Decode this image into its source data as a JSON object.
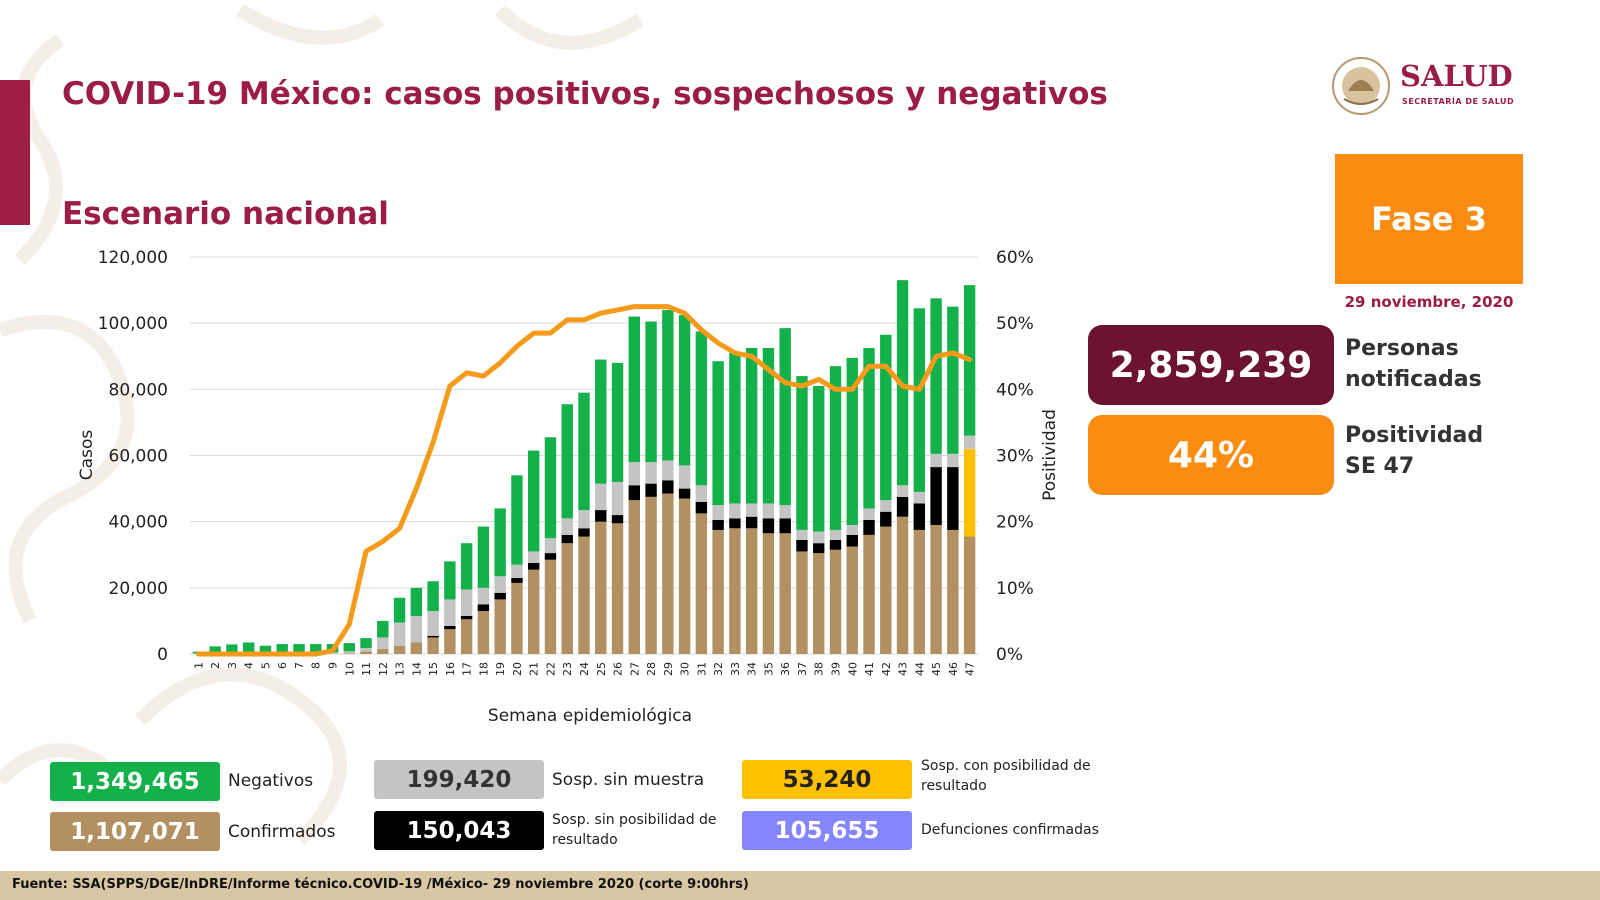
{
  "slide": {
    "title": "COVID-19 México: casos positivos, sospechosos y negativos",
    "subtitle": "Escenario nacional",
    "logo": {
      "name": "SALUD",
      "sub": "SECRETARÍA DE SALUD",
      "seal_text": "ESTADOS UNIDOS MEXICANOS"
    },
    "phase_label": "Fase 3",
    "date": "29 noviembre, 2020",
    "kpis": [
      {
        "value": "2,859,239",
        "label_1": "Personas",
        "label_2": "notificadas",
        "color": "#6b1331"
      },
      {
        "value": "44%",
        "label_1": "Positividad",
        "label_2": "SE 47",
        "color": "#fb8c11"
      }
    ],
    "footer": "Fuente: SSA(SPPS/DGE/InDRE/Informe técnico.COVID-19 /México- 29 noviembre 2020 (corte 9:00hrs)"
  },
  "legend": {
    "negativos": {
      "value": "1,349,465",
      "label": "Negativos",
      "color": "#14b14b"
    },
    "confirmados": {
      "value": "1,107,071",
      "label": "Confirmados",
      "color": "#b29062"
    },
    "sin_muestra": {
      "value": "199,420",
      "label": "Sosp. sin muestra",
      "color": "#c4c4c4"
    },
    "sin_posibilidad": {
      "value": "150,043",
      "label_1": "Sosp. sin posibilidad de",
      "label_2": "resultado",
      "color": "#000000"
    },
    "con_posibilidad": {
      "value": "53,240",
      "label_1": "Sosp. con posibilidad de",
      "label_2": "resultado",
      "color": "#ffc000"
    },
    "defunciones": {
      "value": "105,655",
      "label": "Defunciones confirmadas",
      "color": "#8585ff"
    }
  },
  "chart_data": {
    "type": "bar",
    "stacked": true,
    "xlabel": "Semana epidemiológica",
    "ylabel": "Casos",
    "y2label": "Positividad",
    "ylim": [
      0,
      120000
    ],
    "y2lim": [
      0,
      60
    ],
    "yticks": [
      "0",
      "20,000",
      "40,000",
      "60,000",
      "80,000",
      "100,000",
      "120,000"
    ],
    "y2ticks": [
      "0%",
      "10%",
      "20%",
      "30%",
      "40%",
      "50%",
      "60%"
    ],
    "grid": true,
    "categories": [
      "1",
      "2",
      "3",
      "4",
      "5",
      "6",
      "7",
      "8",
      "9",
      "10",
      "11",
      "12",
      "13",
      "14",
      "15",
      "16",
      "17",
      "18",
      "19",
      "20",
      "21",
      "22",
      "23",
      "24",
      "25",
      "26",
      "27",
      "28",
      "29",
      "30",
      "31",
      "32",
      "33",
      "34",
      "35",
      "36",
      "37",
      "38",
      "39",
      "40",
      "41",
      "42",
      "43",
      "44",
      "45",
      "46",
      "47"
    ],
    "series": [
      {
        "name": "Confirmados",
        "color": "#b29062",
        "values": [
          0,
          0,
          0,
          0,
          0,
          0,
          0,
          0,
          5,
          200,
          800,
          1500,
          2500,
          3500,
          5000,
          7500,
          10500,
          13000,
          16500,
          21500,
          25500,
          28500,
          33500,
          35500,
          40000,
          39500,
          46500,
          47500,
          48500,
          47000,
          42500,
          37500,
          38000,
          38000,
          36500,
          36500,
          31000,
          30500,
          31500,
          32500,
          36000,
          38500,
          41500,
          37500,
          39000,
          37500,
          35500
        ]
      },
      {
        "name": "Sosp. sin posibilidad de resultado",
        "color": "#000000",
        "values": [
          0,
          0,
          0,
          0,
          0,
          0,
          0,
          0,
          0,
          0,
          0,
          0,
          0,
          0,
          500,
          1000,
          1000,
          2000,
          2000,
          1500,
          2000,
          2000,
          2500,
          2500,
          3500,
          2500,
          4500,
          4000,
          4000,
          3000,
          3500,
          3000,
          3000,
          3500,
          4500,
          4500,
          3500,
          3000,
          3000,
          3500,
          4500,
          4500,
          6000,
          8000,
          17500,
          19000,
          0
        ]
      },
      {
        "name": "Sosp. con posibilidad de resultado",
        "color": "#ffc000",
        "values": [
          0,
          0,
          0,
          0,
          0,
          0,
          0,
          0,
          0,
          0,
          0,
          0,
          0,
          0,
          0,
          0,
          0,
          0,
          0,
          0,
          0,
          0,
          0,
          0,
          0,
          0,
          0,
          0,
          0,
          0,
          0,
          0,
          0,
          0,
          0,
          0,
          0,
          0,
          0,
          0,
          0,
          0,
          0,
          0,
          0,
          0,
          26500
        ]
      },
      {
        "name": "Sosp. sin muestra",
        "color": "#c4c4c4",
        "values": [
          200,
          300,
          400,
          500,
          500,
          500,
          500,
          500,
          500,
          600,
          1000,
          3500,
          7000,
          8000,
          7500,
          8000,
          8000,
          5000,
          5000,
          4000,
          3500,
          4500,
          5000,
          5500,
          8000,
          10000,
          7000,
          6500,
          6000,
          7000,
          5000,
          4500,
          4500,
          4000,
          4500,
          4000,
          3000,
          3500,
          3000,
          3000,
          3500,
          3500,
          3500,
          3500,
          4000,
          4000,
          4000
        ]
      },
      {
        "name": "Negativos",
        "color": "#14b14b",
        "values": [
          500,
          2000,
          2500,
          3000,
          2000,
          2500,
          2500,
          2500,
          2500,
          2500,
          3000,
          5000,
          7500,
          8500,
          9000,
          11500,
          14000,
          18500,
          20500,
          27000,
          30500,
          30500,
          34500,
          35500,
          37500,
          36000,
          44000,
          42500,
          45500,
          45500,
          46500,
          43500,
          45500,
          47000,
          47000,
          53500,
          46500,
          44000,
          49500,
          50500,
          48500,
          50000,
          62000,
          55500,
          47000,
          44500,
          45500
        ]
      },
      {
        "name": "Positividad (%)",
        "type": "line",
        "axis": "secondary",
        "color": "#f59a1a",
        "values": [
          0,
          0,
          0,
          0,
          0,
          0,
          0,
          0,
          0.5,
          4.5,
          15.5,
          17,
          19,
          25,
          32,
          40.5,
          42.5,
          42,
          44,
          46.5,
          48.5,
          48.5,
          50.5,
          50.5,
          51.5,
          52,
          52.5,
          52.5,
          52.5,
          51.5,
          49,
          47,
          45.5,
          45,
          43,
          41,
          40.5,
          41.5,
          40,
          40,
          43.5,
          43.5,
          40.5,
          40,
          45,
          45.5,
          44.5
        ]
      }
    ]
  }
}
